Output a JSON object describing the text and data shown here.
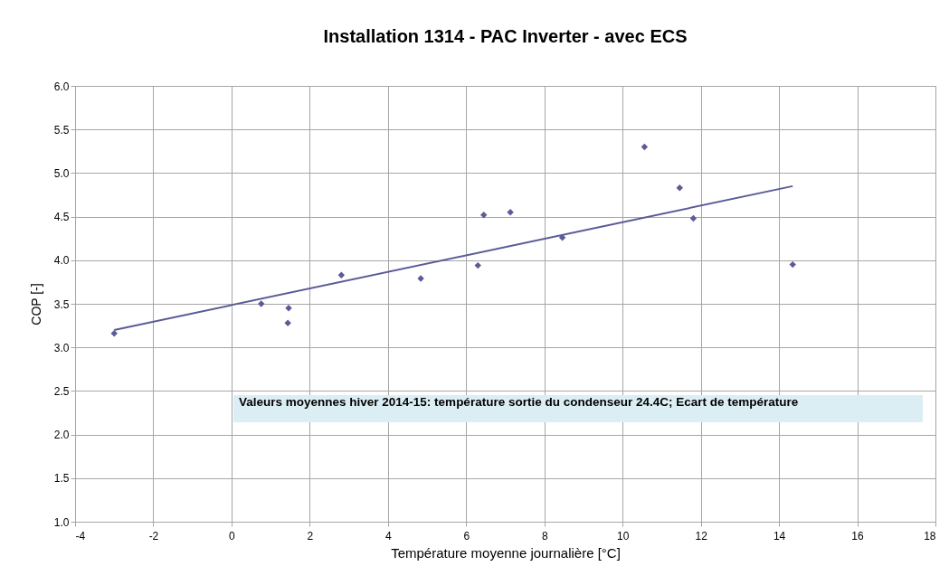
{
  "chart_data": {
    "type": "scatter",
    "title": "Installation 1314 - PAC Inverter - avec ECS",
    "xlabel": "Température moyenne journalière  [°C]",
    "ylabel": "COP [-]",
    "xlim": [
      -4,
      18
    ],
    "xticks": [
      -4,
      -2,
      0,
      2,
      4,
      6,
      8,
      10,
      12,
      14,
      16,
      18
    ],
    "ylim": [
      1,
      6
    ],
    "yticks": [
      {
        "value": 1,
        "label": "1.0"
      },
      {
        "value": 1.5,
        "label": "1.5"
      },
      {
        "value": 2,
        "label": "2.0"
      },
      {
        "value": 2.5,
        "label": "2.5"
      },
      {
        "value": 3,
        "label": "3.0"
      },
      {
        "value": 3.5,
        "label": "3.5"
      },
      {
        "value": 4,
        "label": "4.0"
      },
      {
        "value": 4.5,
        "label": "4.5"
      },
      {
        "value": 5,
        "label": "5.0"
      },
      {
        "value": 5.5,
        "label": "5.5"
      },
      {
        "value": 6,
        "label": "6.0"
      }
    ],
    "grid": true,
    "series": [
      {
        "marker": "diamond",
        "color": "#5b5b97",
        "x": [
          -3.0,
          0.76,
          1.46,
          1.44,
          2.81,
          4.84,
          6.3,
          6.45,
          7.13,
          8.46,
          10.56,
          11.46,
          11.81,
          14.35
        ],
        "values": [
          3.16,
          3.5,
          3.45,
          3.28,
          3.83,
          3.79,
          3.94,
          4.52,
          4.55,
          4.26,
          5.3,
          4.83,
          4.48,
          3.95
        ]
      },
      {
        "type": "line",
        "color": "#5b5b97",
        "x": [
          -3.0,
          14.35
        ],
        "values": [
          3.2,
          4.85
        ]
      }
    ],
    "annotations": [
      "Valeurs moyennes hiver 2014-15: température sortie du condenseur  24.4C; Ecart de température"
    ]
  }
}
